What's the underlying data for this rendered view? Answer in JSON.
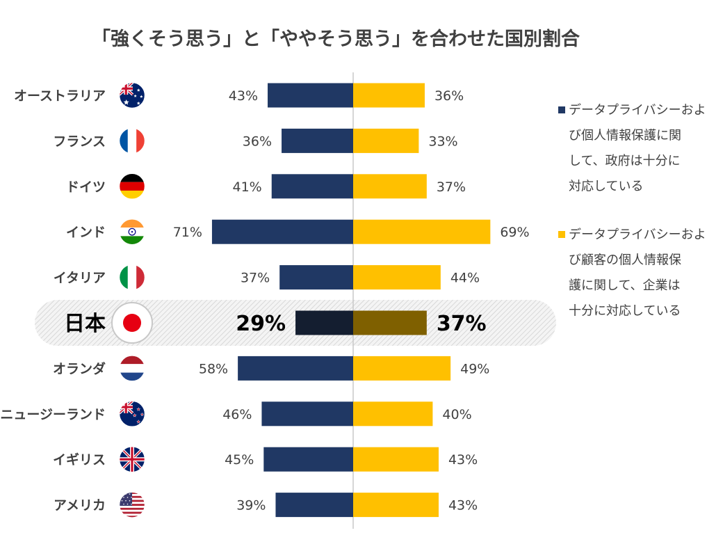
{
  "chart_data": {
    "type": "bar",
    "orientation": "diverging-horizontal",
    "title": "「強くそう思う」と「ややそう思う」を合わせた国別割合",
    "categories": [
      "オーストラリア",
      "フランス",
      "ドイツ",
      "インド",
      "イタリア",
      "日本",
      "オランダ",
      "ニュージーランド",
      "イギリス",
      "アメリカ"
    ],
    "flags": [
      "australia-flag",
      "france-flag",
      "germany-flag",
      "india-flag",
      "italy-flag",
      "japan-flag",
      "netherlands-flag",
      "new-zealand-flag",
      "uk-flag",
      "usa-flag"
    ],
    "highlight": "日本",
    "value_suffix": "%",
    "series": [
      {
        "name": "データプライバシーおよび個人情報保護に関して、政府は十分に対応している",
        "legend_lines": [
          "データプライバシーおよ",
          "び個人情報保護に関",
          "して、政府は十分に",
          "対応している"
        ],
        "color": "#203864",
        "highlight_color": "#141e30",
        "direction": "left",
        "values": [
          43,
          36,
          41,
          71,
          37,
          29,
          58,
          46,
          45,
          39
        ]
      },
      {
        "name": "データプライバシーおよび顧客の個人情報保護に関して、企業は十分に対応している",
        "legend_lines": [
          "データプライバシーおよ",
          "び顧客の個人情報保",
          "護に関して、企業は",
          "十分に対応している"
        ],
        "color": "#ffc000",
        "highlight_color": "#7f6000",
        "direction": "right",
        "values": [
          36,
          33,
          37,
          69,
          44,
          37,
          49,
          40,
          43,
          43
        ]
      }
    ],
    "axis": {
      "center_line": true,
      "grid": false
    },
    "legend_position": "right"
  }
}
